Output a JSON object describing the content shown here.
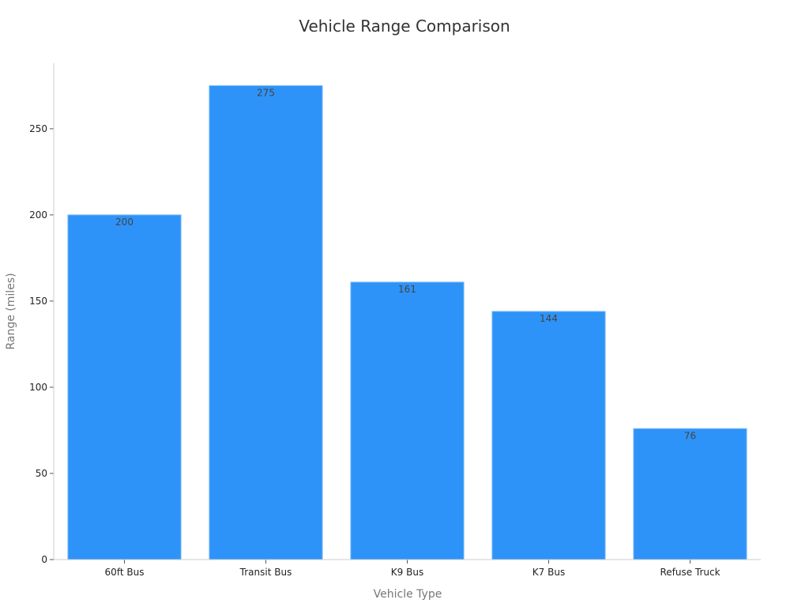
{
  "chart_data": {
    "type": "bar",
    "title": "Vehicle Range Comparison",
    "xlabel": "Vehicle Type",
    "ylabel": "Range (miles)",
    "categories": [
      "60ft Bus",
      "Transit Bus",
      "K9 Bus",
      "K7 Bus",
      "Refuse Truck"
    ],
    "values": [
      200,
      275,
      161,
      144,
      76
    ],
    "data_labels": [
      "200",
      "275",
      "161",
      "144",
      "76"
    ],
    "yticks": [
      0,
      50,
      100,
      150,
      200,
      250
    ],
    "ytick_labels": [
      "0",
      "50",
      "100",
      "150",
      "200",
      "250"
    ],
    "ylim": [
      0,
      288
    ],
    "grid": false,
    "colors": {
      "bar": "#2e93f8",
      "bar_edge": "#7fbcf6"
    }
  }
}
